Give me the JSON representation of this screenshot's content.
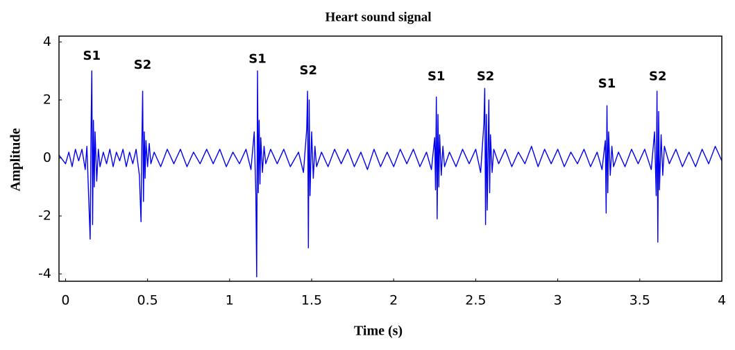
{
  "chart_data": {
    "type": "line",
    "title": "Heart sound signal",
    "x_label": "Time (s)",
    "y_label": "Amplitude",
    "color": "#0000ee",
    "xlim": [
      -0.04,
      4
    ],
    "ylim": [
      -4.25,
      4.2
    ],
    "xticks": [
      0,
      0.5,
      1,
      1.5,
      2,
      2.5,
      3,
      3.5,
      4
    ],
    "yticks": [
      -4,
      -2,
      0,
      2,
      4
    ],
    "x": [
      -0.04,
      0,
      0.02,
      0.04,
      0.06,
      0.08,
      0.1,
      0.12,
      0.13,
      0.14,
      0.15,
      0.155,
      0.16,
      0.165,
      0.17,
      0.175,
      0.18,
      0.19,
      0.2,
      0.21,
      0.23,
      0.25,
      0.27,
      0.29,
      0.31,
      0.33,
      0.35,
      0.37,
      0.39,
      0.41,
      0.43,
      0.45,
      0.46,
      0.465,
      0.47,
      0.475,
      0.48,
      0.485,
      0.49,
      0.5,
      0.51,
      0.52,
      0.54,
      0.58,
      0.62,
      0.66,
      0.7,
      0.74,
      0.78,
      0.82,
      0.86,
      0.9,
      0.94,
      0.98,
      1.02,
      1.06,
      1.1,
      1.13,
      1.15,
      1.16,
      1.165,
      1.17,
      1.175,
      1.18,
      1.185,
      1.19,
      1.2,
      1.21,
      1.22,
      1.25,
      1.29,
      1.33,
      1.37,
      1.42,
      1.45,
      1.47,
      1.475,
      1.48,
      1.485,
      1.49,
      1.5,
      1.51,
      1.52,
      1.53,
      1.56,
      1.6,
      1.64,
      1.68,
      1.72,
      1.76,
      1.8,
      1.84,
      1.88,
      1.92,
      1.96,
      2.0,
      2.04,
      2.08,
      2.12,
      2.16,
      2.2,
      2.23,
      2.25,
      2.255,
      2.26,
      2.265,
      2.27,
      2.275,
      2.28,
      2.29,
      2.3,
      2.31,
      2.34,
      2.38,
      2.42,
      2.46,
      2.5,
      2.53,
      2.55,
      2.555,
      2.56,
      2.565,
      2.57,
      2.58,
      2.585,
      2.59,
      2.6,
      2.61,
      2.64,
      2.68,
      2.72,
      2.76,
      2.8,
      2.84,
      2.88,
      2.92,
      2.96,
      3.0,
      3.04,
      3.08,
      3.12,
      3.16,
      3.2,
      3.24,
      3.27,
      3.29,
      3.295,
      3.3,
      3.305,
      3.31,
      3.32,
      3.33,
      3.34,
      3.37,
      3.41,
      3.45,
      3.49,
      3.53,
      3.57,
      3.59,
      3.6,
      3.605,
      3.61,
      3.615,
      3.62,
      3.63,
      3.64,
      3.65,
      3.68,
      3.72,
      3.76,
      3.8,
      3.84,
      3.88,
      3.92,
      3.96,
      4.0
    ],
    "values": [
      0.1,
      -0.2,
      0.2,
      -0.3,
      0.3,
      -0.1,
      0.3,
      -0.4,
      0.4,
      -1.2,
      -2.8,
      0.8,
      3.0,
      -2.3,
      1.3,
      -1.0,
      0.9,
      -0.8,
      0.3,
      -0.3,
      0.2,
      -0.2,
      0.3,
      -0.3,
      0.2,
      -0.1,
      0.3,
      -0.3,
      0.2,
      -0.2,
      0.3,
      -0.6,
      -2.2,
      0.5,
      2.3,
      -1.5,
      0.9,
      -0.7,
      0.6,
      -0.3,
      0.5,
      -0.2,
      0.2,
      -0.3,
      0.3,
      -0.2,
      0.3,
      -0.3,
      0.2,
      -0.2,
      0.3,
      -0.2,
      0.3,
      -0.3,
      0.2,
      -0.2,
      0.3,
      -0.4,
      0.9,
      -1.3,
      -4.1,
      3.0,
      -1.2,
      1.3,
      -0.9,
      0.7,
      -0.5,
      0.4,
      -0.2,
      0.3,
      -0.2,
      0.3,
      -0.3,
      0.2,
      -0.5,
      1.0,
      2.3,
      -3.1,
      2.0,
      -1.3,
      0.9,
      -0.7,
      0.4,
      -0.3,
      0.2,
      -0.3,
      0.3,
      -0.2,
      0.3,
      -0.3,
      0.2,
      -0.4,
      0.3,
      -0.3,
      0.2,
      -0.3,
      0.3,
      -0.2,
      0.3,
      -0.3,
      0.2,
      -0.4,
      0.7,
      -1.1,
      2.1,
      -2.1,
      1.5,
      -1.0,
      0.8,
      -0.6,
      0.4,
      -0.3,
      0.2,
      -0.3,
      0.3,
      -0.2,
      0.3,
      -0.5,
      1.2,
      2.4,
      -2.3,
      1.5,
      -1.8,
      2.0,
      -1.2,
      0.8,
      -0.5,
      0.3,
      -0.2,
      0.3,
      -0.3,
      0.2,
      -0.2,
      0.4,
      -0.3,
      0.3,
      -0.2,
      0.3,
      -0.3,
      0.2,
      -0.2,
      0.3,
      -0.3,
      0.2,
      -0.4,
      0.6,
      -1.9,
      1.8,
      -1.2,
      0.9,
      -0.6,
      0.4,
      -0.3,
      0.2,
      -0.3,
      0.3,
      -0.2,
      0.3,
      -0.4,
      0.9,
      -1.3,
      2.3,
      -2.9,
      1.6,
      -1.1,
      0.8,
      -0.6,
      0.4,
      -0.2,
      0.3,
      -0.3,
      0.2,
      -0.3,
      0.3,
      -0.2,
      0.4,
      -0.1
    ],
    "annotations": [
      {
        "text": "S1",
        "x": 0.16,
        "y": 3.5
      },
      {
        "text": "S2",
        "x": 0.47,
        "y": 3.2
      },
      {
        "text": "S1",
        "x": 1.17,
        "y": 3.4
      },
      {
        "text": "S2",
        "x": 1.48,
        "y": 3.0
      },
      {
        "text": "S1",
        "x": 2.26,
        "y": 2.8
      },
      {
        "text": "S2",
        "x": 2.56,
        "y": 2.8
      },
      {
        "text": "S1",
        "x": 3.3,
        "y": 2.55
      },
      {
        "text": "S2",
        "x": 3.61,
        "y": 2.8
      }
    ]
  }
}
